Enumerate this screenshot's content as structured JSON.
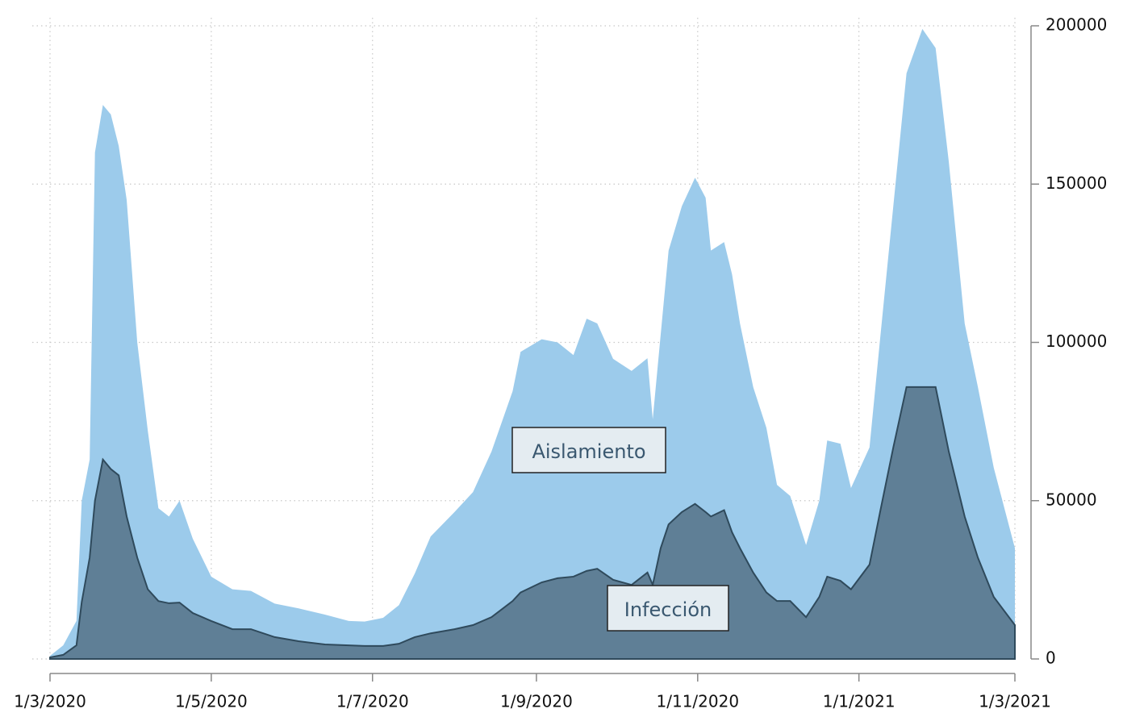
{
  "chart_data": {
    "type": "area",
    "x": [
      "2020-03-01",
      "2020-03-06",
      "2020-03-11",
      "2020-03-13",
      "2020-03-16",
      "2020-03-18",
      "2020-03-21",
      "2020-03-24",
      "2020-03-27",
      "2020-03-30",
      "2020-04-03",
      "2020-04-07",
      "2020-04-11",
      "2020-04-15",
      "2020-04-19",
      "2020-04-24",
      "2020-05-01",
      "2020-05-09",
      "2020-05-16",
      "2020-05-25",
      "2020-06-03",
      "2020-06-13",
      "2020-06-22",
      "2020-06-28",
      "2020-07-05",
      "2020-07-11",
      "2020-07-17",
      "2020-07-23",
      "2020-08-01",
      "2020-08-08",
      "2020-08-15",
      "2020-08-23",
      "2020-08-26",
      "2020-09-03",
      "2020-09-09",
      "2020-09-15",
      "2020-09-20",
      "2020-09-24",
      "2020-09-30",
      "2020-10-07",
      "2020-10-13",
      "2020-10-15",
      "2020-10-18",
      "2020-10-21",
      "2020-10-26",
      "2020-10-31",
      "2020-11-04",
      "2020-11-06",
      "2020-11-11",
      "2020-11-14",
      "2020-11-17",
      "2020-11-22",
      "2020-11-27",
      "2020-12-01",
      "2020-12-06",
      "2020-12-12",
      "2020-12-17",
      "2020-12-20",
      "2020-12-25",
      "2020-12-29",
      "2021-01-05",
      "2021-01-09",
      "2021-01-14",
      "2021-01-19",
      "2021-01-25",
      "2021-01-30",
      "2021-02-04",
      "2021-02-10",
      "2021-02-15",
      "2021-02-21",
      "2021-03-01"
    ],
    "series": [
      {
        "name": "Aislamiento",
        "color": "#9ccbeb",
        "values": [
          1000,
          4300,
          12000,
          50000,
          63000,
          160000,
          175000,
          172000,
          162000,
          145000,
          100000,
          72000,
          47600,
          45000,
          50000,
          38000,
          26000,
          22000,
          21500,
          17500,
          16000,
          14000,
          12000,
          11800,
          13000,
          17000,
          27000,
          38700,
          46400,
          52700,
          65500,
          84600,
          97000,
          101000,
          100000,
          96000,
          107500,
          106000,
          94800,
          91000,
          95000,
          75700,
          102400,
          129000,
          143000,
          152000,
          145700,
          129000,
          131700,
          121500,
          106000,
          85900,
          73000,
          55000,
          51500,
          36000,
          50000,
          69000,
          68000,
          54000,
          66800,
          101000,
          143000,
          185000,
          199000,
          193000,
          157000,
          106000,
          85900,
          60400,
          35000
        ]
      },
      {
        "name": "Infección",
        "color": "#5f7f96",
        "values": [
          500,
          1300,
          4300,
          18000,
          32000,
          50000,
          63000,
          60000,
          58000,
          45000,
          32000,
          22000,
          18300,
          17600,
          17800,
          14500,
          12000,
          9400,
          9400,
          6900,
          5600,
          4600,
          4300,
          4100,
          4100,
          4800,
          6900,
          8100,
          9400,
          10700,
          13200,
          18300,
          21000,
          24200,
          25500,
          26000,
          27800,
          28500,
          25000,
          23400,
          27300,
          23400,
          35000,
          42500,
          46400,
          49000,
          46400,
          45000,
          47000,
          40000,
          35000,
          27300,
          21000,
          18300,
          18300,
          13200,
          19600,
          26000,
          24700,
          22000,
          29800,
          46400,
          66800,
          85900,
          85900,
          85900,
          65500,
          45000,
          32000,
          19600,
          10700
        ]
      }
    ],
    "xlim": [
      "2020-03-01",
      "2021-03-01"
    ],
    "xticks": [
      {
        "value": "2020-03-01",
        "label": "1/3/2020"
      },
      {
        "value": "2020-05-01",
        "label": "1/5/2020"
      },
      {
        "value": "2020-07-01",
        "label": "1/7/2020"
      },
      {
        "value": "2020-09-01",
        "label": "1/9/2020"
      },
      {
        "value": "2020-11-01",
        "label": "1/11/2020"
      },
      {
        "value": "2021-01-01",
        "label": "1/1/2021"
      },
      {
        "value": "2021-03-01",
        "label": "1/3/2021"
      }
    ],
    "ylim": [
      0,
      200000
    ],
    "yticks": [
      0,
      50000,
      100000,
      150000,
      200000
    ],
    "grid": true
  }
}
